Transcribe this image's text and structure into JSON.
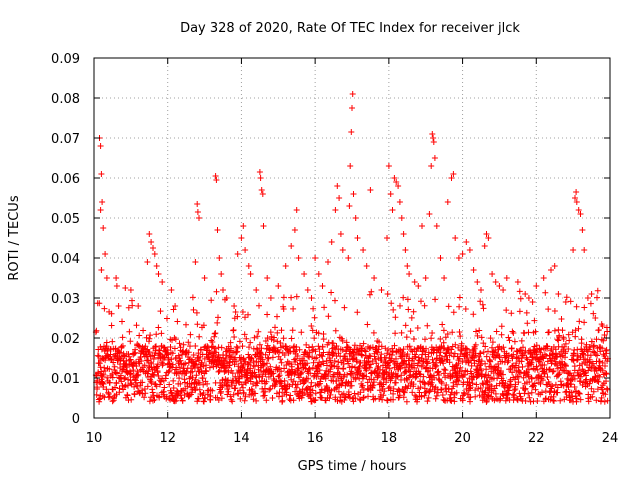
{
  "chart_data": {
    "type": "scatter",
    "title": "Day 328 of 2020, Rate Of TEC Index for receiver jlck",
    "xlabel": "GPS time / hours",
    "ylabel": "ROTI / TECUs",
    "xlim": [
      10,
      24
    ],
    "ylim": [
      0,
      0.09
    ],
    "xticks": [
      10,
      12,
      14,
      16,
      18,
      20,
      22,
      24
    ],
    "xtick_labels": [
      "10",
      "12",
      "14",
      "16",
      "18",
      "20",
      "22",
      "24"
    ],
    "yticks": [
      0,
      0.01,
      0.02,
      0.03,
      0.04,
      0.05,
      0.06,
      0.07,
      0.08,
      0.09
    ],
    "ytick_labels": [
      "0",
      "0.01",
      "0.02",
      "0.03",
      "0.04",
      "0.05",
      "0.06",
      "0.07",
      "0.08",
      "0.09"
    ],
    "grid": true,
    "marker": "+",
    "color": "#ff0000",
    "series": [
      {
        "name": "ROTI",
        "points": [
          [
            10.15,
            0.07
          ],
          [
            10.18,
            0.068
          ],
          [
            10.2,
            0.061
          ],
          [
            10.22,
            0.054
          ],
          [
            10.25,
            0.0475
          ],
          [
            10.18,
            0.052
          ],
          [
            10.3,
            0.041
          ],
          [
            10.2,
            0.037
          ],
          [
            10.35,
            0.035
          ],
          [
            10.6,
            0.035
          ],
          [
            10.62,
            0.033
          ],
          [
            10.85,
            0.0325
          ],
          [
            11.0,
            0.032
          ],
          [
            11.2,
            0.028
          ],
          [
            11.5,
            0.046
          ],
          [
            11.55,
            0.044
          ],
          [
            11.6,
            0.0425
          ],
          [
            11.65,
            0.041
          ],
          [
            11.45,
            0.039
          ],
          [
            11.7,
            0.038
          ],
          [
            11.75,
            0.036
          ],
          [
            11.85,
            0.034
          ],
          [
            12.1,
            0.032
          ],
          [
            12.2,
            0.028
          ],
          [
            12.8,
            0.0535
          ],
          [
            12.82,
            0.0515
          ],
          [
            12.85,
            0.05
          ],
          [
            12.75,
            0.039
          ],
          [
            13.0,
            0.035
          ],
          [
            13.3,
            0.0605
          ],
          [
            13.32,
            0.0595
          ],
          [
            13.35,
            0.047
          ],
          [
            13.4,
            0.04
          ],
          [
            13.45,
            0.036
          ],
          [
            13.5,
            0.032
          ],
          [
            13.6,
            0.03
          ],
          [
            13.8,
            0.028
          ],
          [
            13.9,
            0.041
          ],
          [
            14.0,
            0.045
          ],
          [
            14.05,
            0.048
          ],
          [
            14.1,
            0.042
          ],
          [
            14.2,
            0.038
          ],
          [
            14.25,
            0.036
          ],
          [
            14.4,
            0.032
          ],
          [
            14.5,
            0.0615
          ],
          [
            14.52,
            0.06
          ],
          [
            14.55,
            0.057
          ],
          [
            14.58,
            0.056
          ],
          [
            14.6,
            0.048
          ],
          [
            14.7,
            0.035
          ],
          [
            14.8,
            0.03
          ],
          [
            15.0,
            0.033
          ],
          [
            15.2,
            0.038
          ],
          [
            15.35,
            0.043
          ],
          [
            15.45,
            0.047
          ],
          [
            15.5,
            0.052
          ],
          [
            15.55,
            0.04
          ],
          [
            15.7,
            0.036
          ],
          [
            15.8,
            0.032
          ],
          [
            15.9,
            0.03
          ],
          [
            16.0,
            0.04
          ],
          [
            16.1,
            0.036
          ],
          [
            16.2,
            0.033
          ],
          [
            16.35,
            0.039
          ],
          [
            16.45,
            0.044
          ],
          [
            16.55,
            0.052
          ],
          [
            16.6,
            0.058
          ],
          [
            16.65,
            0.055
          ],
          [
            16.7,
            0.046
          ],
          [
            16.75,
            0.042
          ],
          [
            16.9,
            0.04
          ],
          [
            16.93,
            0.053
          ],
          [
            16.95,
            0.063
          ],
          [
            16.98,
            0.0715
          ],
          [
            17.0,
            0.0775
          ],
          [
            17.02,
            0.081
          ],
          [
            17.04,
            0.056
          ],
          [
            17.1,
            0.05
          ],
          [
            17.15,
            0.045
          ],
          [
            17.3,
            0.042
          ],
          [
            17.4,
            0.038
          ],
          [
            17.5,
            0.057
          ],
          [
            17.6,
            0.035
          ],
          [
            17.8,
            0.032
          ],
          [
            17.95,
            0.045
          ],
          [
            18.0,
            0.063
          ],
          [
            18.05,
            0.056
          ],
          [
            18.1,
            0.052
          ],
          [
            18.15,
            0.06
          ],
          [
            18.2,
            0.059
          ],
          [
            18.25,
            0.058
          ],
          [
            18.3,
            0.054
          ],
          [
            18.35,
            0.05
          ],
          [
            18.4,
            0.046
          ],
          [
            18.45,
            0.042
          ],
          [
            18.5,
            0.038
          ],
          [
            18.55,
            0.036
          ],
          [
            18.7,
            0.034
          ],
          [
            18.8,
            0.033
          ],
          [
            18.9,
            0.048
          ],
          [
            19.0,
            0.035
          ],
          [
            19.1,
            0.051
          ],
          [
            19.15,
            0.063
          ],
          [
            19.18,
            0.071
          ],
          [
            19.2,
            0.07
          ],
          [
            19.22,
            0.069
          ],
          [
            19.25,
            0.065
          ],
          [
            19.3,
            0.048
          ],
          [
            19.4,
            0.04
          ],
          [
            19.5,
            0.035
          ],
          [
            19.6,
            0.054
          ],
          [
            19.7,
            0.06
          ],
          [
            19.75,
            0.061
          ],
          [
            19.8,
            0.045
          ],
          [
            19.9,
            0.04
          ],
          [
            20.0,
            0.041
          ],
          [
            20.1,
            0.044
          ],
          [
            20.2,
            0.042
          ],
          [
            20.3,
            0.037
          ],
          [
            20.4,
            0.034
          ],
          [
            20.5,
            0.032
          ],
          [
            20.6,
            0.043
          ],
          [
            20.65,
            0.046
          ],
          [
            20.7,
            0.045
          ],
          [
            20.8,
            0.036
          ],
          [
            20.9,
            0.034
          ],
          [
            21.0,
            0.033
          ],
          [
            21.1,
            0.032
          ],
          [
            21.2,
            0.035
          ],
          [
            21.5,
            0.034
          ],
          [
            21.7,
            0.031
          ],
          [
            21.8,
            0.03
          ],
          [
            21.9,
            0.029
          ],
          [
            22.0,
            0.033
          ],
          [
            22.2,
            0.035
          ],
          [
            22.4,
            0.037
          ],
          [
            22.5,
            0.038
          ],
          [
            22.6,
            0.031
          ],
          [
            22.8,
            0.029
          ],
          [
            23.0,
            0.042
          ],
          [
            23.05,
            0.055
          ],
          [
            23.08,
            0.0565
          ],
          [
            23.1,
            0.054
          ],
          [
            23.15,
            0.052
          ],
          [
            23.2,
            0.051
          ],
          [
            23.25,
            0.047
          ],
          [
            23.3,
            0.042
          ],
          [
            23.4,
            0.03
          ],
          [
            23.5,
            0.031
          ],
          [
            23.6,
            0.025
          ],
          [
            23.7,
            0.022
          ],
          [
            23.8,
            0.023
          ],
          [
            23.9,
            0.02
          ]
        ],
        "dense_band": {
          "description": "Dense cloud of ROTI values spanning the full time range",
          "x_range": [
            10.05,
            23.95
          ],
          "typical_min": 0.004,
          "typical_max": 0.022,
          "median": 0.01,
          "point_count": 2600
        }
      }
    ]
  }
}
